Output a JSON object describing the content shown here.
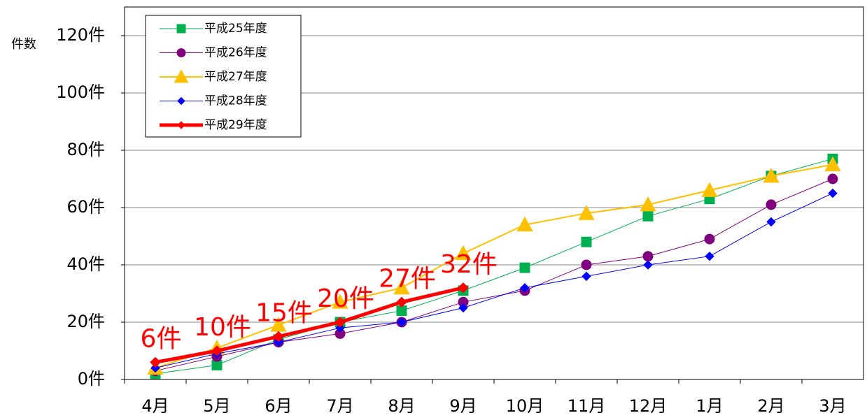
{
  "chart_data": {
    "type": "line",
    "y_label": "件数",
    "categories": [
      "4月",
      "5月",
      "6月",
      "7月",
      "8月",
      "9月",
      "10月",
      "11月",
      "12月",
      "1月",
      "2月",
      "3月"
    ],
    "series": [
      {
        "name": "平成25年度",
        "color": "#00b050",
        "marker": "square",
        "linewidth": 1,
        "values": [
          2,
          5,
          14,
          20,
          24,
          31,
          39,
          48,
          57,
          63,
          71,
          77
        ]
      },
      {
        "name": "平成26年度",
        "color": "#800080",
        "marker": "circle",
        "linewidth": 1,
        "values": [
          3,
          8,
          13,
          16,
          20,
          27,
          31,
          40,
          43,
          49,
          61,
          70
        ]
      },
      {
        "name": "平成27年度",
        "color": "#ffc000",
        "marker": "triangle",
        "linewidth": 2,
        "values": [
          4,
          11,
          19,
          27,
          32,
          44,
          54,
          58,
          61,
          66,
          71,
          75
        ]
      },
      {
        "name": "平成28年度",
        "color": "#0000ff",
        "marker": "diamond",
        "linewidth": 1,
        "values": [
          4,
          9,
          13,
          18,
          20,
          25,
          32,
          36,
          40,
          43,
          55,
          65
        ]
      },
      {
        "name": "平成29年度",
        "color": "#ff0000",
        "marker": "diamond",
        "linewidth": 5,
        "values": [
          6,
          10,
          15,
          20,
          27,
          32,
          null,
          null,
          null,
          null,
          null,
          null
        ],
        "value_labels": [
          "6件",
          "10件",
          "15件",
          "20件",
          "27件",
          "32件",
          null,
          null,
          null,
          null,
          null,
          null
        ]
      }
    ],
    "ylim": [
      0,
      130
    ],
    "yticks": [
      {
        "value": 0,
        "label": "0件"
      },
      {
        "value": 20,
        "label": "20件"
      },
      {
        "value": 40,
        "label": "40件"
      },
      {
        "value": 60,
        "label": "60件"
      },
      {
        "value": 80,
        "label": "80件"
      },
      {
        "value": 100,
        "label": "100件"
      },
      {
        "value": 120,
        "label": "120件"
      }
    ],
    "grid": true,
    "legend": "upper left"
  }
}
